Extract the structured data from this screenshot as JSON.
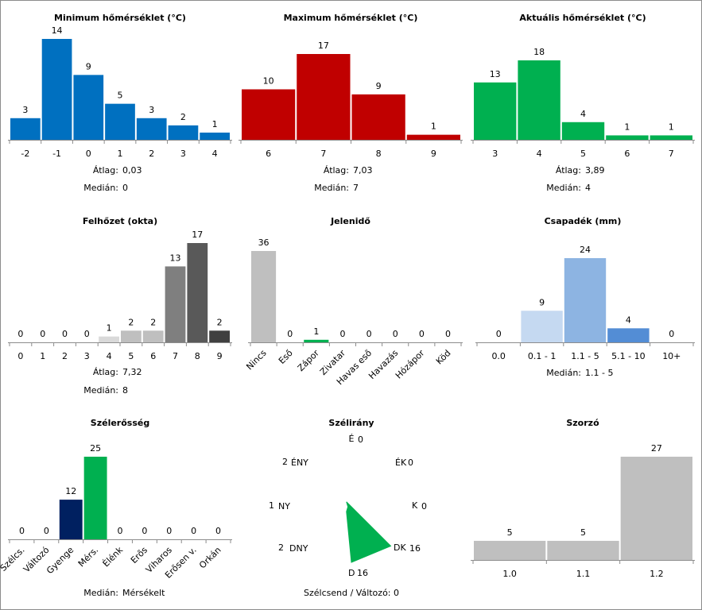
{
  "chart_data": [
    {
      "type": "bar",
      "title": "Minimum hőmérséklet (°C)",
      "categories": [
        "-2",
        "-1",
        "0",
        "1",
        "2",
        "3",
        "4"
      ],
      "values": [
        3,
        14,
        9,
        5,
        3,
        2,
        1
      ],
      "color": "#0070c0",
      "stats": [
        {
          "label": "Átlag:",
          "value": "0,03"
        },
        {
          "label": "Medián:",
          "value": "0"
        }
      ]
    },
    {
      "type": "bar",
      "title": "Maximum hőmérséklet (°C)",
      "categories": [
        "6",
        "7",
        "8",
        "9"
      ],
      "values": [
        10,
        17,
        9,
        1
      ],
      "color": "#c00000",
      "stats": [
        {
          "label": "Átlag:",
          "value": "7,03"
        },
        {
          "label": "Medián:",
          "value": "7"
        }
      ]
    },
    {
      "type": "bar",
      "title": "Aktuális hőmérséklet (°C)",
      "categories": [
        "3",
        "4",
        "5",
        "6",
        "7"
      ],
      "values": [
        13,
        18,
        4,
        1,
        1
      ],
      "color": "#00b050",
      "stats": [
        {
          "label": "Átlag:",
          "value": "3,89"
        },
        {
          "label": "Medián:",
          "value": "4"
        }
      ]
    },
    {
      "type": "bar",
      "title": "Felhőzet (okta)",
      "categories": [
        "0",
        "1",
        "2",
        "3",
        "4",
        "5",
        "6",
        "7",
        "8",
        "9"
      ],
      "values": [
        0,
        0,
        0,
        0,
        1,
        2,
        2,
        13,
        17,
        2
      ],
      "colors": [
        "#d9d9d9",
        "#d9d9d9",
        "#d9d9d9",
        "#d9d9d9",
        "#d9d9d9",
        "#bfbfbf",
        "#bfbfbf",
        "#7f7f7f",
        "#595959",
        "#404040"
      ],
      "stats": [
        {
          "label": "Átlag:",
          "value": "7,32"
        },
        {
          "label": "Medián:",
          "value": "8"
        }
      ]
    },
    {
      "type": "bar",
      "title": "Jelenidő",
      "categories": [
        "Nincs",
        "Eső",
        "Zápor",
        "Zivatar",
        "Havas eső",
        "Havazás",
        "Hózápor",
        "Köd"
      ],
      "values": [
        36,
        0,
        1,
        0,
        0,
        0,
        0,
        0
      ],
      "colors": [
        "#bfbfbf",
        "#bfbfbf",
        "#00b050",
        "#bfbfbf",
        "#bfbfbf",
        "#bfbfbf",
        "#bfbfbf",
        "#bfbfbf"
      ],
      "stats": []
    },
    {
      "type": "bar",
      "title": "Csapadék (mm)",
      "categories": [
        "0.0",
        "0.1 - 1",
        "1.1 - 5",
        "5.1 - 10",
        "10+"
      ],
      "values": [
        0,
        9,
        24,
        4,
        0
      ],
      "colors": [
        "#c5d9f1",
        "#c5d9f1",
        "#8db4e2",
        "#538dd5",
        "#538dd5"
      ],
      "stats": [
        {
          "label": "Medián:",
          "value": "1.1 - 5"
        }
      ]
    },
    {
      "type": "bar",
      "title": "Szélerősség",
      "categories": [
        "Szélcs.",
        "Változó",
        "Gyenge",
        "Mérs.",
        "Élénk",
        "Erős",
        "Viharos",
        "Erősen v.",
        "Orkán"
      ],
      "values": [
        0,
        0,
        12,
        25,
        0,
        0,
        0,
        0,
        0
      ],
      "colors": [
        "#bfbfbf",
        "#bfbfbf",
        "#002060",
        "#00b050",
        "#bfbfbf",
        "#bfbfbf",
        "#bfbfbf",
        "#bfbfbf",
        "#bfbfbf"
      ],
      "stats": [
        {
          "label": "Medián:",
          "value": "Mérsékelt"
        }
      ]
    },
    {
      "type": "radar",
      "title": "Szélirány",
      "directions": [
        {
          "label": "É",
          "value": 0
        },
        {
          "label": "ÉK",
          "value": 0
        },
        {
          "label": "K",
          "value": 0
        },
        {
          "label": "DK",
          "value": 16
        },
        {
          "label": "D",
          "value": 16
        },
        {
          "label": "DNY",
          "value": 2
        },
        {
          "label": "NY",
          "value": 1
        },
        {
          "label": "ÉNY",
          "value": 2
        }
      ],
      "color": "#00b050",
      "footer": "Szélcsend / Változó: 0"
    },
    {
      "type": "bar",
      "title": "Szorzó",
      "categories": [
        "1.0",
        "1.1",
        "1.2"
      ],
      "values": [
        5,
        5,
        27
      ],
      "color": "#bfbfbf",
      "stats": []
    }
  ]
}
